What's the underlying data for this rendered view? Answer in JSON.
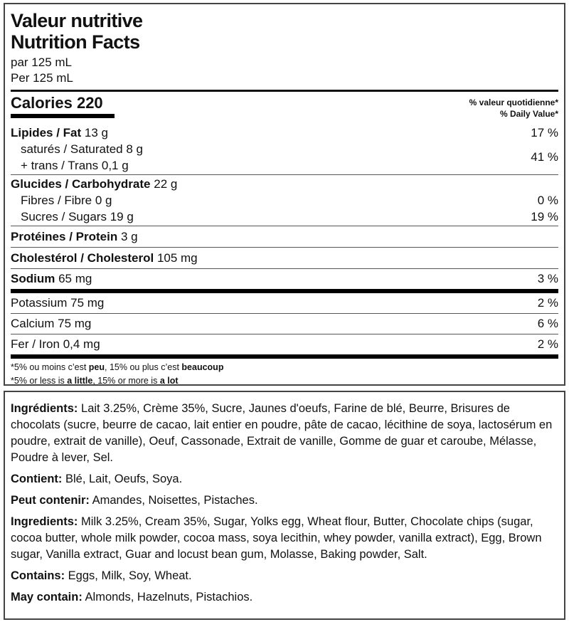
{
  "header": {
    "title_fr": "Valeur nutritive",
    "title_en": "Nutrition Facts",
    "serving_fr": "par 125 mL",
    "serving_en": "Per 125 mL"
  },
  "calories": {
    "label": "Calories",
    "value": "220"
  },
  "dv_header": {
    "fr": "% valeur quotidienne*",
    "en": "% Daily Value*"
  },
  "nutrients": {
    "fat": {
      "label": "Lipides / Fat",
      "amount": "13 g",
      "dv": "17 %"
    },
    "saturated": {
      "label": "saturés / Saturated",
      "amount": "8 g"
    },
    "trans": {
      "label": "+ trans / Trans",
      "amount": "0,1 g"
    },
    "sat_trans_dv": "41 %",
    "carb": {
      "label": "Glucides / Carbohydrate",
      "amount": "22 g"
    },
    "fibre": {
      "label": "Fibres / Fibre",
      "amount": "0 g",
      "dv": "0 %"
    },
    "sugars": {
      "label": "Sucres / Sugars",
      "amount": "19 g",
      "dv": "19 %"
    },
    "protein": {
      "label": "Protéines / Protein",
      "amount": "3 g"
    },
    "cholesterol": {
      "label": "Cholestérol / Cholesterol",
      "amount": "105 mg"
    },
    "sodium": {
      "label": "Sodium",
      "amount": "65 mg",
      "dv": "3 %"
    },
    "potassium": {
      "label": "Potassium",
      "amount": "75 mg",
      "dv": "2 %"
    },
    "calcium": {
      "label": "Calcium",
      "amount": "75 mg",
      "dv": "6 %"
    },
    "iron": {
      "label": "Fer / Iron",
      "amount": "0,4 mg",
      "dv": "2 %"
    }
  },
  "footnote": {
    "fr": {
      "a": "*5% ou moins c’est ",
      "b": "peu",
      "c": ", 15% ou plus c’est ",
      "d": "beaucoup"
    },
    "en": {
      "a": "*5% or less is ",
      "b": "a little",
      "c": ", 15% or more is ",
      "d": "a lot"
    }
  },
  "ingredients": {
    "fr": {
      "label": "Ingrédients:",
      "text": " Lait 3.25%, Crème 35%, Sucre, Jaunes d'oeufs, Farine de blé, Beurre, Brisures de chocolats (sucre, beurre de cacao, lait entier en poudre, pâte de cacao, lécithine de soya, lactosérum en poudre, extrait de vanille), Oeuf, Cassonade, Extrait de vanille, Gomme de guar et caroube, Mélasse, Poudre à lever, Sel."
    },
    "contient": {
      "label": "Contient:",
      "text": " Blé, Lait, Oeufs, Soya."
    },
    "peut_contenir": {
      "label": "Peut contenir:",
      "text": " Amandes, Noisettes, Pistaches."
    },
    "en": {
      "label": "Ingredients:",
      "text": " Milk 3.25%, Cream 35%, Sugar, Yolks egg, Wheat flour, Butter, Chocolate chips (sugar, cocoa butter, whole milk powder, cocoa mass, soya lecithin, whey powder, vanilla extract), Egg, Brown sugar, Vanilla extract, Guar and locust bean gum, Molasse, Baking powder, Salt."
    },
    "contains": {
      "label": "Contains:",
      "text": " Eggs, Milk, Soy, Wheat."
    },
    "may_contain": {
      "label": "May contain:",
      "text": " Almonds, Hazelnuts, Pistachios."
    }
  }
}
